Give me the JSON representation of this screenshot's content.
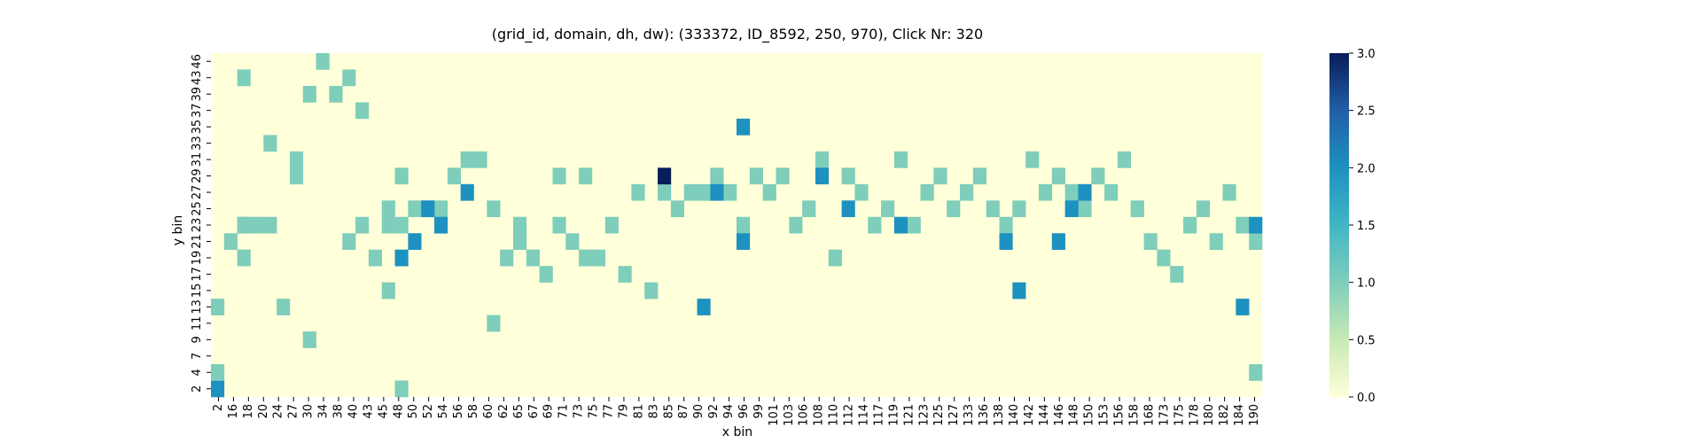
{
  "chart_data": {
    "type": "heatmap",
    "title": "(grid_id, domain, dh, dw): (333372, ID_8592, 250, 970), Click Nr: 320",
    "xlabel": "x bin",
    "ylabel": "y bin",
    "x_ticks": [
      "2",
      "16",
      "18",
      "20",
      "24",
      "27",
      "30",
      "34",
      "38",
      "40",
      "43",
      "45",
      "48",
      "50",
      "52",
      "54",
      "56",
      "58",
      "60",
      "62",
      "65",
      "67",
      "69",
      "71",
      "73",
      "75",
      "77",
      "79",
      "81",
      "83",
      "85",
      "87",
      "90",
      "92",
      "94",
      "96",
      "99",
      "101",
      "103",
      "106",
      "108",
      "110",
      "112",
      "114",
      "117",
      "119",
      "121",
      "123",
      "125",
      "127",
      "133",
      "136",
      "138",
      "140",
      "142",
      "144",
      "146",
      "148",
      "150",
      "153",
      "156",
      "158",
      "168",
      "173",
      "175",
      "178",
      "180",
      "182",
      "184",
      "190"
    ],
    "y_ticks": [
      "2",
      "4",
      "7",
      "9",
      "11",
      "13",
      "15",
      "17",
      "19",
      "21",
      "23",
      "25",
      "27",
      "29",
      "31",
      "33",
      "35",
      "37",
      "39",
      "43",
      "46"
    ],
    "n_cols": 80,
    "n_rows": 21,
    "colorscale": {
      "min": 0,
      "max": 3,
      "colors": [
        "#ffffd9",
        "#c7e9b4",
        "#7fcdbb",
        "#41b6c4",
        "#1d91c0",
        "#225ea8",
        "#081d58"
      ]
    },
    "colorbar_ticks": [
      "0.0",
      "0.5",
      "1.0",
      "1.5",
      "2.0",
      "2.5",
      "3.0"
    ],
    "cells": [
      {
        "col": 0,
        "row": 0,
        "value": 2
      },
      {
        "col": 0,
        "row": 1,
        "value": 1
      },
      {
        "col": 0,
        "row": 5,
        "value": 1
      },
      {
        "col": 1,
        "row": 9,
        "value": 1
      },
      {
        "col": 2,
        "row": 8,
        "value": 1
      },
      {
        "col": 2,
        "row": 19,
        "value": 1
      },
      {
        "col": 2,
        "row": 10,
        "value": 1
      },
      {
        "col": 2,
        "row": 10,
        "value": 1
      },
      {
        "col": 3,
        "row": 10,
        "value": 1
      },
      {
        "col": 4,
        "row": 10,
        "value": 1
      },
      {
        "col": 4,
        "row": 15,
        "value": 1
      },
      {
        "col": 5,
        "row": 5,
        "value": 1
      },
      {
        "col": 6,
        "row": 14,
        "value": 1
      },
      {
        "col": 6,
        "row": 13,
        "value": 1
      },
      {
        "col": 7,
        "row": 3,
        "value": 1
      },
      {
        "col": 7,
        "row": 18,
        "value": 1
      },
      {
        "col": 8,
        "row": 20,
        "value": 1
      },
      {
        "col": 9,
        "row": 18,
        "value": 1
      },
      {
        "col": 10,
        "row": 19,
        "value": 1
      },
      {
        "col": 10,
        "row": 9,
        "value": 1
      },
      {
        "col": 11,
        "row": 17,
        "value": 1
      },
      {
        "col": 11,
        "row": 10,
        "value": 1
      },
      {
        "col": 12,
        "row": 8,
        "value": 1
      },
      {
        "col": 13,
        "row": 6,
        "value": 1
      },
      {
        "col": 13,
        "row": 10,
        "value": 1
      },
      {
        "col": 13,
        "row": 11,
        "value": 1
      },
      {
        "col": 14,
        "row": 10,
        "value": 1
      },
      {
        "col": 14,
        "row": 13,
        "value": 1
      },
      {
        "col": 14,
        "row": 0,
        "value": 1
      },
      {
        "col": 15,
        "row": 11,
        "value": 1
      },
      {
        "col": 16,
        "row": 11,
        "value": 1
      },
      {
        "col": 17,
        "row": 11,
        "value": 1
      },
      {
        "col": 18,
        "row": 13,
        "value": 1
      },
      {
        "col": 19,
        "row": 14,
        "value": 1
      },
      {
        "col": 20,
        "row": 14,
        "value": 1
      },
      {
        "col": 21,
        "row": 11,
        "value": 1
      },
      {
        "col": 21,
        "row": 4,
        "value": 1
      },
      {
        "col": 22,
        "row": 8,
        "value": 1
      },
      {
        "col": 23,
        "row": 10,
        "value": 1
      },
      {
        "col": 23,
        "row": 9,
        "value": 1
      },
      {
        "col": 24,
        "row": 8,
        "value": 1
      },
      {
        "col": 25,
        "row": 7,
        "value": 1
      },
      {
        "col": 26,
        "row": 10,
        "value": 1
      },
      {
        "col": 26,
        "row": 13,
        "value": 1
      },
      {
        "col": 27,
        "row": 9,
        "value": 1
      },
      {
        "col": 28,
        "row": 8,
        "value": 1
      },
      {
        "col": 28,
        "row": 13,
        "value": 1
      },
      {
        "col": 29,
        "row": 8,
        "value": 1
      },
      {
        "col": 30,
        "row": 10,
        "value": 1
      },
      {
        "col": 31,
        "row": 7,
        "value": 1
      },
      {
        "col": 32,
        "row": 12,
        "value": 1
      },
      {
        "col": 33,
        "row": 6,
        "value": 1
      },
      {
        "col": 34,
        "row": 12,
        "value": 1
      },
      {
        "col": 35,
        "row": 11,
        "value": 1
      },
      {
        "col": 36,
        "row": 12,
        "value": 1
      },
      {
        "col": 37,
        "row": 12,
        "value": 1
      },
      {
        "col": 38,
        "row": 13,
        "value": 1
      },
      {
        "col": 39,
        "row": 12,
        "value": 1
      },
      {
        "col": 40,
        "row": 10,
        "value": 1
      },
      {
        "col": 41,
        "row": 13,
        "value": 1
      },
      {
        "col": 42,
        "row": 12,
        "value": 1
      },
      {
        "col": 43,
        "row": 13,
        "value": 1
      },
      {
        "col": 44,
        "row": 10,
        "value": 1
      },
      {
        "col": 45,
        "row": 11,
        "value": 1
      },
      {
        "col": 46,
        "row": 14,
        "value": 1
      },
      {
        "col": 47,
        "row": 8,
        "value": 1
      },
      {
        "col": 48,
        "row": 13,
        "value": 1
      },
      {
        "col": 49,
        "row": 12,
        "value": 1
      },
      {
        "col": 50,
        "row": 10,
        "value": 1
      },
      {
        "col": 51,
        "row": 11,
        "value": 1
      },
      {
        "col": 52,
        "row": 14,
        "value": 1
      },
      {
        "col": 53,
        "row": 10,
        "value": 1
      },
      {
        "col": 54,
        "row": 12,
        "value": 1
      },
      {
        "col": 55,
        "row": 13,
        "value": 1
      },
      {
        "col": 56,
        "row": 11,
        "value": 1
      },
      {
        "col": 57,
        "row": 12,
        "value": 1
      },
      {
        "col": 58,
        "row": 13,
        "value": 1
      },
      {
        "col": 59,
        "row": 11,
        "value": 1
      },
      {
        "col": 60,
        "row": 10,
        "value": 1
      },
      {
        "col": 61,
        "row": 11,
        "value": 1
      },
      {
        "col": 62,
        "row": 14,
        "value": 1
      },
      {
        "col": 63,
        "row": 12,
        "value": 1
      },
      {
        "col": 64,
        "row": 13,
        "value": 1
      },
      {
        "col": 65,
        "row": 12,
        "value": 1
      },
      {
        "col": 66,
        "row": 11,
        "value": 1
      },
      {
        "col": 67,
        "row": 13,
        "value": 1
      },
      {
        "col": 68,
        "row": 12,
        "value": 1
      },
      {
        "col": 69,
        "row": 14,
        "value": 1
      },
      {
        "col": 70,
        "row": 11,
        "value": 1
      },
      {
        "col": 71,
        "row": 9,
        "value": 1
      },
      {
        "col": 72,
        "row": 8,
        "value": 1
      },
      {
        "col": 73,
        "row": 7,
        "value": 1
      },
      {
        "col": 74,
        "row": 10,
        "value": 1
      },
      {
        "col": 75,
        "row": 11,
        "value": 1
      },
      {
        "col": 76,
        "row": 9,
        "value": 1
      },
      {
        "col": 77,
        "row": 12,
        "value": 1
      },
      {
        "col": 78,
        "row": 10,
        "value": 1
      },
      {
        "col": 79,
        "row": 1,
        "value": 1
      },
      {
        "col": 79,
        "row": 9,
        "value": 1
      },
      {
        "col": 14,
        "row": 8,
        "value": 2
      },
      {
        "col": 15,
        "row": 9,
        "value": 2
      },
      {
        "col": 16,
        "row": 11,
        "value": 2
      },
      {
        "col": 17,
        "row": 10,
        "value": 2
      },
      {
        "col": 19,
        "row": 12,
        "value": 2
      },
      {
        "col": 38,
        "row": 12,
        "value": 2
      },
      {
        "col": 37,
        "row": 5,
        "value": 2
      },
      {
        "col": 40,
        "row": 9,
        "value": 2
      },
      {
        "col": 46,
        "row": 13,
        "value": 2
      },
      {
        "col": 48,
        "row": 11,
        "value": 2
      },
      {
        "col": 52,
        "row": 10,
        "value": 2
      },
      {
        "col": 60,
        "row": 9,
        "value": 2
      },
      {
        "col": 61,
        "row": 6,
        "value": 2
      },
      {
        "col": 64,
        "row": 9,
        "value": 2
      },
      {
        "col": 65,
        "row": 11,
        "value": 2
      },
      {
        "col": 66,
        "row": 12,
        "value": 2
      },
      {
        "col": 78,
        "row": 5,
        "value": 2
      },
      {
        "col": 80,
        "row": 6,
        "value": 2
      },
      {
        "col": 40,
        "row": 16,
        "value": 2
      },
      {
        "col": 79,
        "row": 10,
        "value": 2
      },
      {
        "col": 34,
        "row": 13,
        "value": 3
      }
    ]
  }
}
